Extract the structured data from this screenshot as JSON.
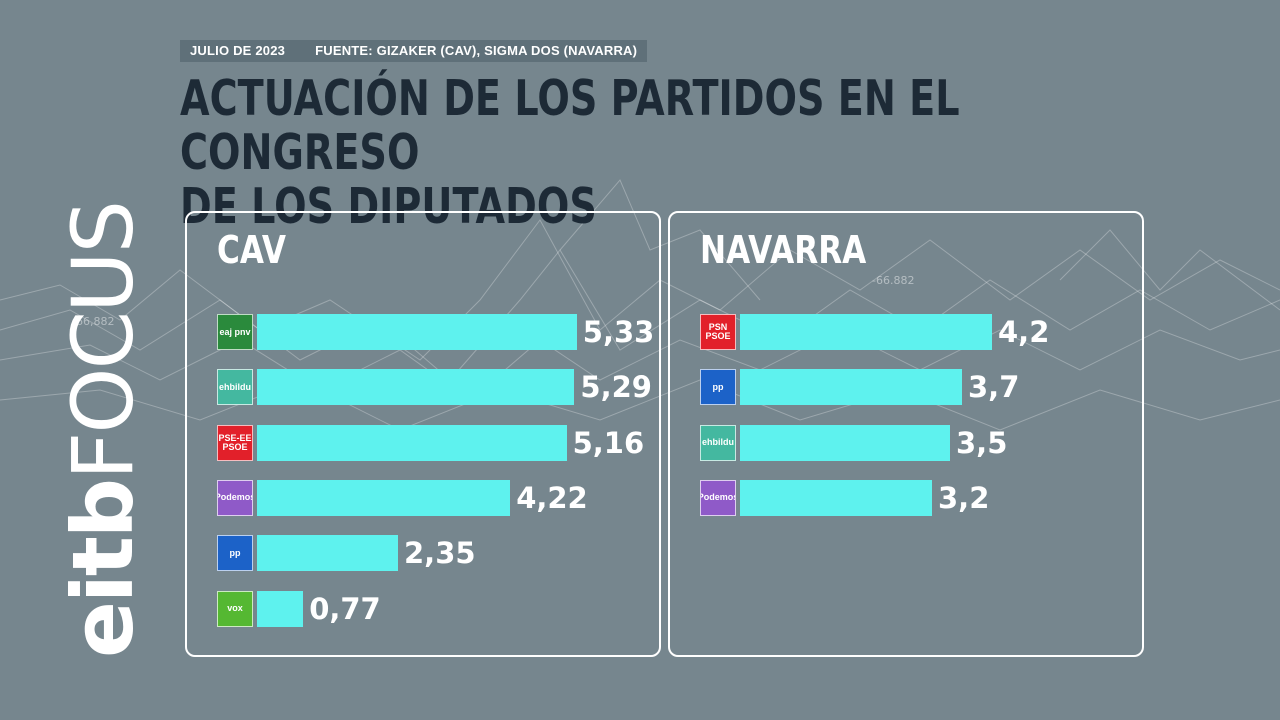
{
  "meta": {
    "date": "JULIO DE 2023",
    "source": "FUENTE: GIZAKER (CAV), SIGMA DOS (NAVARRA)"
  },
  "title": {
    "line1": "ACTUACIÓN DE LOS PARTIDOS EN EL CONGRESO",
    "line2": "DE LOS DIPUTADOS"
  },
  "brand": {
    "part1": "eitb",
    "part2": "FOCUS"
  },
  "background_labels": [
    "-66,882",
    "-66.882"
  ],
  "colors": {
    "bar": "#5ef2ee",
    "background": "#76868e",
    "title": "#1d2a36"
  },
  "chart_data": [
    {
      "type": "bar",
      "orientation": "horizontal",
      "title": "CAV",
      "categories": [
        "EAJ-PNV",
        "EH Bildu",
        "PSE-EE PSOE",
        "Podemos",
        "PP",
        "VOX"
      ],
      "logo_text": [
        "eaj pnv",
        "ehbildu",
        "PSE-EE PSOE",
        "Podemos",
        "pp",
        "vox"
      ],
      "logo_colors": [
        "#2a8a3c",
        "#44b8a0",
        "#e2202a",
        "#8f5ac8",
        "#1c62c8",
        "#55b832"
      ],
      "values": [
        5.33,
        5.29,
        5.16,
        4.22,
        2.35,
        0.77
      ],
      "value_labels": [
        "5,33",
        "5,29",
        "5,16",
        "4,22",
        "2,35",
        "0,77"
      ],
      "xlim": [
        0,
        10
      ],
      "grid": false
    },
    {
      "type": "bar",
      "orientation": "horizontal",
      "title": "NAVARRA",
      "categories": [
        "PSN-PSOE",
        "PP",
        "EH Bildu",
        "Podemos"
      ],
      "logo_text": [
        "PSN PSOE",
        "pp",
        "ehbildu",
        "Podemos"
      ],
      "logo_colors": [
        "#e2202a",
        "#1c62c8",
        "#44b8a0",
        "#8f5ac8"
      ],
      "values": [
        4.2,
        3.7,
        3.5,
        3.2
      ],
      "value_labels": [
        "4,2",
        "3,7",
        "3,5",
        "3,2"
      ],
      "xlim": [
        0,
        10
      ],
      "grid": false
    }
  ]
}
